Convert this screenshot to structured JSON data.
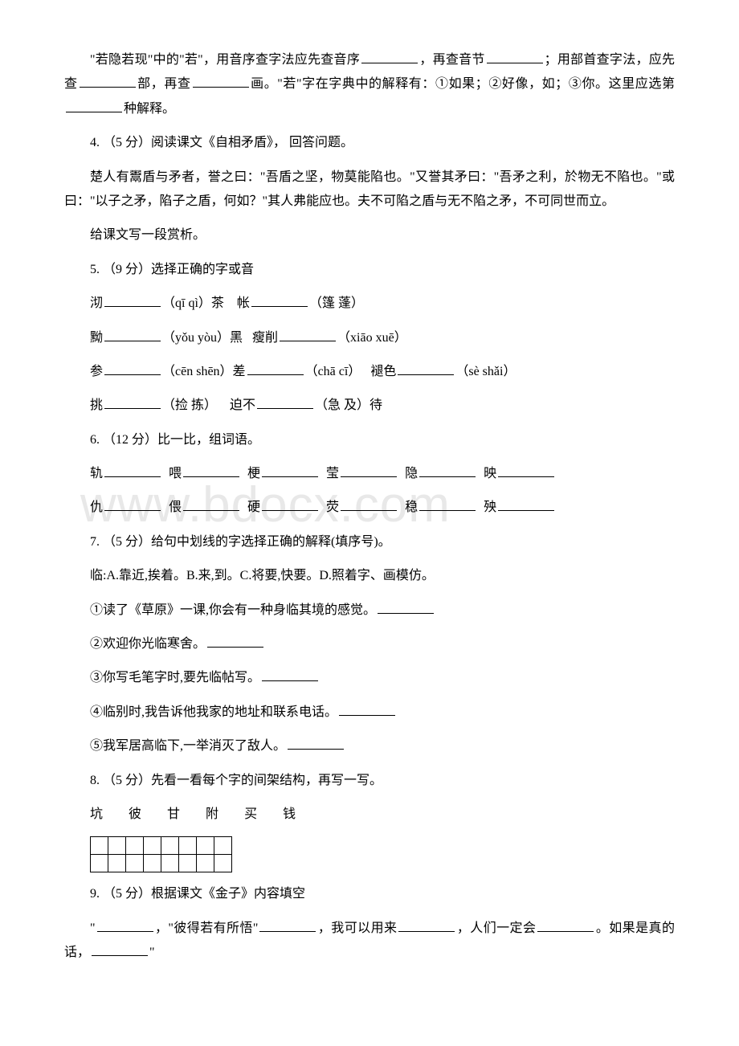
{
  "q3_part": {
    "line1_a": "\"若隐若现\"中的\"若\"，用音序查字法应先查音序",
    "line1_b": "，再查音节",
    "line1_c": "；用部首查字法，应先查",
    "line1_d": "部，再查",
    "line1_e": "画。\"若\"字在字典中的解释有：①如果；②好像，如；③你。这里应选第",
    "line1_f": "种解释。"
  },
  "q4": {
    "prompt": "4. （5 分）阅读课文《自相矛盾》， 回答问题。",
    "text": "楚人有鬻盾与矛者，誉之曰：\"吾盾之坚，物莫能陷也。\"又誉其矛曰：\"吾矛之利，於物无不陷也。\"或曰：\"以子之矛，陷子之盾，何如？\"其人弗能应也。夫不可陷之盾与无不陷之矛，不可同世而立。",
    "sub": "给课文写一段赏析。"
  },
  "q5": {
    "prompt": "5. （9 分）选择正确的字或音",
    "r1a": "沏",
    "r1b": "（qī qì）茶",
    "r1c": "帐",
    "r1d": "（篷 蓬）",
    "r2a": "黝",
    "r2b": "（yǒu yòu）黑",
    "r2c": "瘦削",
    "r2d": "（xiāo xuē）",
    "r3a": "参",
    "r3b": "（cēn shēn）差",
    "r3c": "（chā cī）",
    "r3d": "褪色",
    "r3e": "（sè shǎi）",
    "r4a": "挑",
    "r4b": "（捡 拣）",
    "r4c": "迫不",
    "r4d": "（急 及）待"
  },
  "q6": {
    "prompt": "6. （12 分）比一比，组词语。",
    "row1": [
      "轨",
      "喂",
      "梗",
      "莹",
      "隐",
      "映"
    ],
    "row2": [
      "仇",
      "偎",
      "硬",
      "荧",
      "稳",
      "殃"
    ]
  },
  "q7": {
    "prompt": "7. （5 分）给句中划线的字选择正确的解释(填序号)。",
    "def": "临:A.靠近,挨着。B.来,到。C.将要,快要。D.照着字、画模仿。",
    "s1": "①读了《草原》一课,你会有一种身临其境的感觉。",
    "s2": "②欢迎你光临寒舍。",
    "s3": "③你写毛笔字时,要先临帖写。",
    "s4": "④临别时,我告诉他我家的地址和联系电话。",
    "s5": "⑤我军居高临下,一举消灭了敌人。"
  },
  "q8": {
    "prompt": "8. （5 分）先看一看每个字的间架结构，再写一写。",
    "chars": [
      "坑",
      "彼",
      "甘",
      "附",
      "买",
      "钱"
    ]
  },
  "q9": {
    "prompt": "9. （5 分）根据课文《金子》内容填空",
    "a": "\"",
    "b": "，\"彼得若有所悟\"",
    "c": "，我可以用来",
    "d": "，人们一定会",
    "e": "。如果是真的话，",
    "f": "\""
  },
  "watermark": "www.bdocx.com"
}
